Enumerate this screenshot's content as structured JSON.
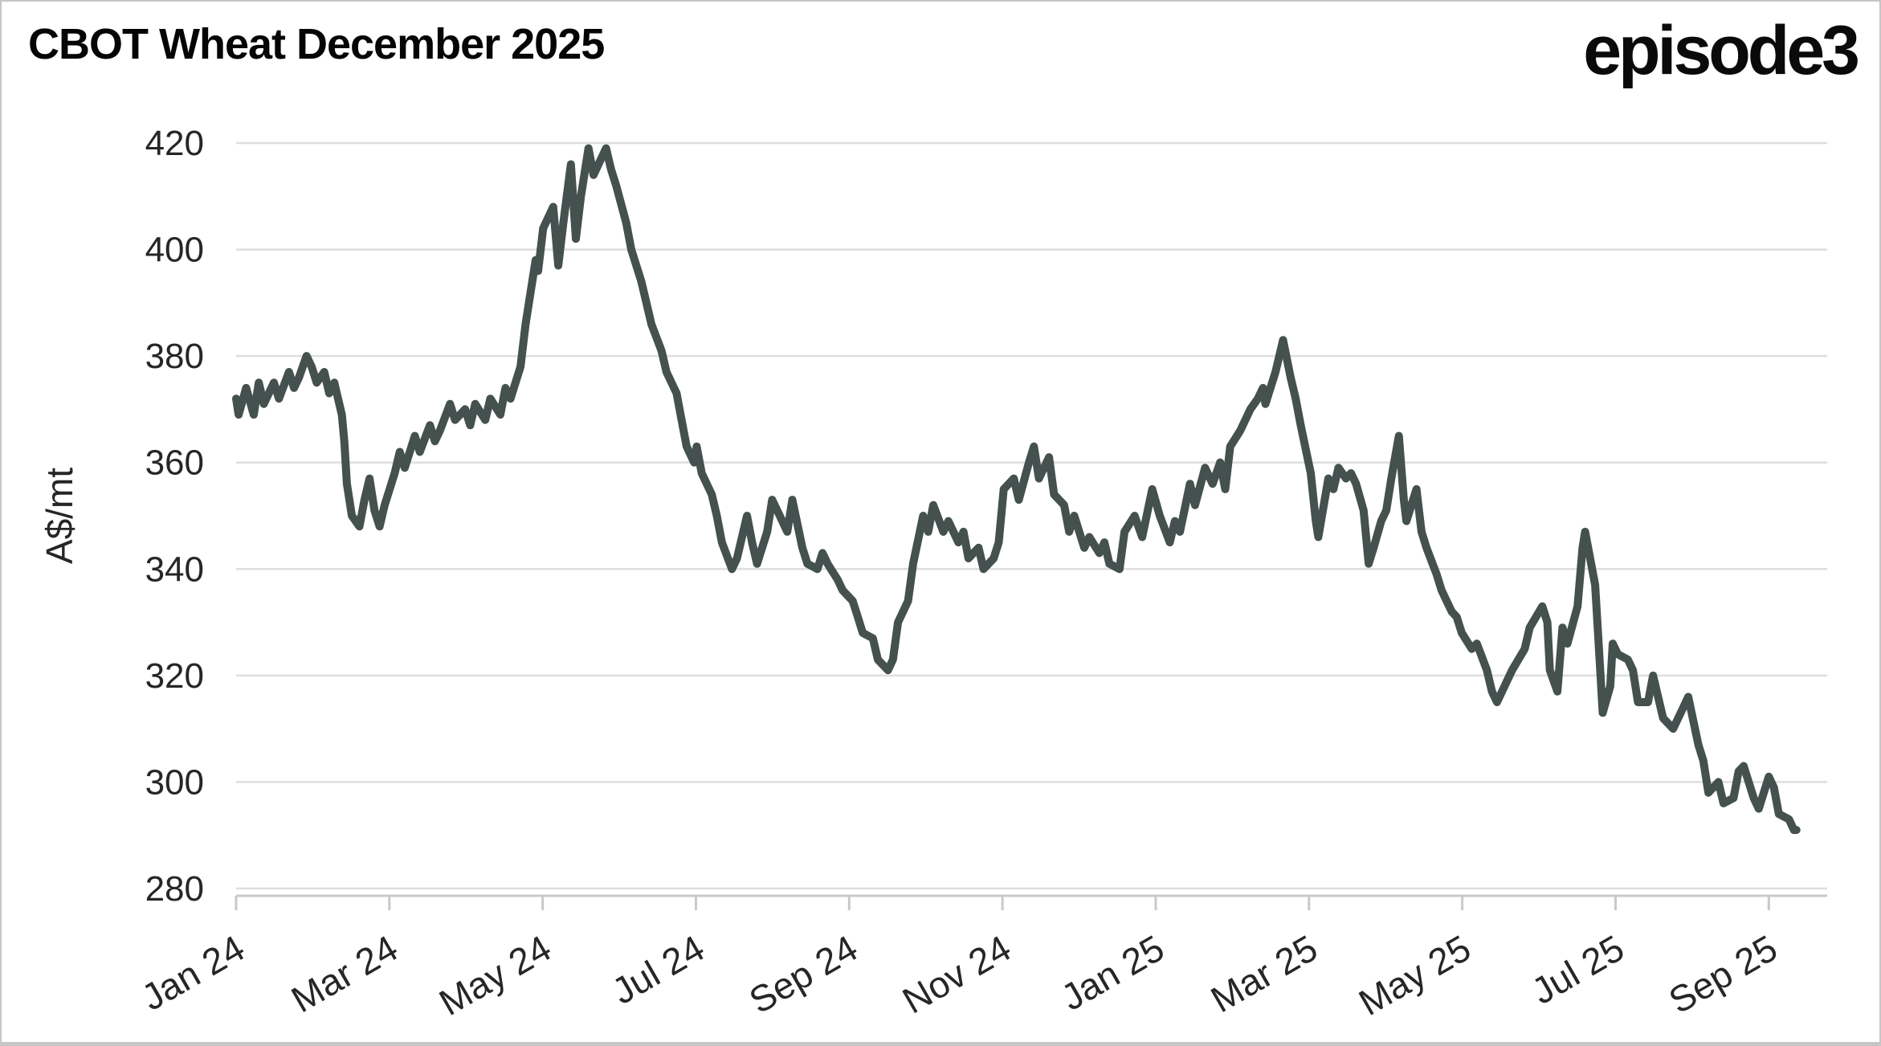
{
  "header": {
    "title": "CBOT Wheat December 2025",
    "logo_text": "episode3"
  },
  "chart_data": {
    "type": "line",
    "title": "CBOT Wheat December 2025",
    "xlabel": "",
    "ylabel": "A$/mt",
    "ylim": [
      280,
      420
    ],
    "grid": true,
    "legend_position": "none",
    "y_ticks": [
      420,
      400,
      380,
      360,
      340,
      320,
      300,
      280
    ],
    "x_tick_labels": [
      "Jan 24",
      "Mar 24",
      "May 24",
      "Jul 24",
      "Sep 24",
      "Nov 24",
      "Jan 25",
      "Mar 25",
      "May 25",
      "Jul 25",
      "Sep 25"
    ],
    "colors": {
      "line": "#44514e",
      "grid": "#dedede",
      "axis": "#c9c9c9",
      "tick_text": "#262626",
      "title_text": "#050505",
      "background": "#ffffff"
    },
    "series": [
      {
        "name": "CBOT Wheat December 2025",
        "unit": "A$/mt",
        "points": [
          [
            "2024-01-01",
            372
          ],
          [
            "2024-01-02",
            369
          ],
          [
            "2024-01-05",
            374
          ],
          [
            "2024-01-08",
            369
          ],
          [
            "2024-01-10",
            375
          ],
          [
            "2024-01-12",
            371
          ],
          [
            "2024-01-16",
            375
          ],
          [
            "2024-01-18",
            372
          ],
          [
            "2024-01-22",
            377
          ],
          [
            "2024-01-24",
            374
          ],
          [
            "2024-01-26",
            376
          ],
          [
            "2024-01-29",
            380
          ],
          [
            "2024-01-31",
            378
          ],
          [
            "2024-02-02",
            375
          ],
          [
            "2024-02-05",
            377
          ],
          [
            "2024-02-07",
            373
          ],
          [
            "2024-02-09",
            375
          ],
          [
            "2024-02-12",
            369
          ],
          [
            "2024-02-13",
            364
          ],
          [
            "2024-02-14",
            356
          ],
          [
            "2024-02-16",
            350
          ],
          [
            "2024-02-19",
            348
          ],
          [
            "2024-02-21",
            353
          ],
          [
            "2024-02-23",
            357
          ],
          [
            "2024-02-25",
            351
          ],
          [
            "2024-02-27",
            348
          ],
          [
            "2024-02-29",
            352
          ],
          [
            "2024-03-04",
            358
          ],
          [
            "2024-03-06",
            362
          ],
          [
            "2024-03-08",
            359
          ],
          [
            "2024-03-12",
            365
          ],
          [
            "2024-03-14",
            362
          ],
          [
            "2024-03-18",
            367
          ],
          [
            "2024-03-20",
            364
          ],
          [
            "2024-03-22",
            366
          ],
          [
            "2024-03-26",
            371
          ],
          [
            "2024-03-28",
            368
          ],
          [
            "2024-04-01",
            370
          ],
          [
            "2024-04-03",
            367
          ],
          [
            "2024-04-05",
            371
          ],
          [
            "2024-04-09",
            368
          ],
          [
            "2024-04-11",
            372
          ],
          [
            "2024-04-15",
            369
          ],
          [
            "2024-04-17",
            374
          ],
          [
            "2024-04-19",
            372
          ],
          [
            "2024-04-23",
            378
          ],
          [
            "2024-04-25",
            386
          ],
          [
            "2024-04-29",
            398
          ],
          [
            "2024-04-30",
            396
          ],
          [
            "2024-05-02",
            404
          ],
          [
            "2024-05-06",
            408
          ],
          [
            "2024-05-08",
            397
          ],
          [
            "2024-05-10",
            405
          ],
          [
            "2024-05-13",
            416
          ],
          [
            "2024-05-15",
            402
          ],
          [
            "2024-05-17",
            410
          ],
          [
            "2024-05-20",
            419
          ],
          [
            "2024-05-22",
            414
          ],
          [
            "2024-05-24",
            416
          ],
          [
            "2024-05-27",
            419
          ],
          [
            "2024-05-29",
            415
          ],
          [
            "2024-05-31",
            412
          ],
          [
            "2024-06-04",
            405
          ],
          [
            "2024-06-06",
            400
          ],
          [
            "2024-06-10",
            394
          ],
          [
            "2024-06-12",
            390
          ],
          [
            "2024-06-14",
            386
          ],
          [
            "2024-06-18",
            381
          ],
          [
            "2024-06-20",
            377
          ],
          [
            "2024-06-24",
            373
          ],
          [
            "2024-06-26",
            368
          ],
          [
            "2024-06-28",
            363
          ],
          [
            "2024-07-01",
            360
          ],
          [
            "2024-07-02",
            363
          ],
          [
            "2024-07-04",
            358
          ],
          [
            "2024-07-08",
            354
          ],
          [
            "2024-07-10",
            350
          ],
          [
            "2024-07-12",
            345
          ],
          [
            "2024-07-16",
            340
          ],
          [
            "2024-07-18",
            342
          ],
          [
            "2024-07-22",
            350
          ],
          [
            "2024-07-24",
            345
          ],
          [
            "2024-07-26",
            341
          ],
          [
            "2024-07-30",
            347
          ],
          [
            "2024-08-01",
            353
          ],
          [
            "2024-08-05",
            349
          ],
          [
            "2024-08-07",
            347
          ],
          [
            "2024-08-09",
            353
          ],
          [
            "2024-08-13",
            344
          ],
          [
            "2024-08-15",
            341
          ],
          [
            "2024-08-19",
            340
          ],
          [
            "2024-08-21",
            343
          ],
          [
            "2024-08-23",
            341
          ],
          [
            "2024-08-27",
            338
          ],
          [
            "2024-08-29",
            336
          ],
          [
            "2024-09-02",
            334
          ],
          [
            "2024-09-04",
            331
          ],
          [
            "2024-09-06",
            328
          ],
          [
            "2024-09-10",
            327
          ],
          [
            "2024-09-12",
            323
          ],
          [
            "2024-09-16",
            321
          ],
          [
            "2024-09-18",
            323
          ],
          [
            "2024-09-20",
            330
          ],
          [
            "2024-09-24",
            334
          ],
          [
            "2024-09-26",
            341
          ],
          [
            "2024-09-30",
            350
          ],
          [
            "2024-10-02",
            347
          ],
          [
            "2024-10-04",
            352
          ],
          [
            "2024-10-08",
            347
          ],
          [
            "2024-10-10",
            349
          ],
          [
            "2024-10-14",
            345
          ],
          [
            "2024-10-16",
            347
          ],
          [
            "2024-10-18",
            342
          ],
          [
            "2024-10-22",
            344
          ],
          [
            "2024-10-24",
            340
          ],
          [
            "2024-10-28",
            342
          ],
          [
            "2024-10-30",
            345
          ],
          [
            "2024-11-01",
            355
          ],
          [
            "2024-11-05",
            357
          ],
          [
            "2024-11-07",
            353
          ],
          [
            "2024-11-11",
            360
          ],
          [
            "2024-11-13",
            363
          ],
          [
            "2024-11-15",
            357
          ],
          [
            "2024-11-19",
            361
          ],
          [
            "2024-11-21",
            354
          ],
          [
            "2024-11-25",
            352
          ],
          [
            "2024-11-27",
            347
          ],
          [
            "2024-11-29",
            350
          ],
          [
            "2024-12-03",
            344
          ],
          [
            "2024-12-05",
            346
          ],
          [
            "2024-12-09",
            343
          ],
          [
            "2024-12-11",
            345
          ],
          [
            "2024-12-13",
            341
          ],
          [
            "2024-12-17",
            340
          ],
          [
            "2024-12-19",
            347
          ],
          [
            "2024-12-23",
            350
          ],
          [
            "2024-12-26",
            346
          ],
          [
            "2024-12-30",
            355
          ],
          [
            "2025-01-02",
            350
          ],
          [
            "2025-01-06",
            345
          ],
          [
            "2025-01-08",
            349
          ],
          [
            "2025-01-10",
            347
          ],
          [
            "2025-01-14",
            356
          ],
          [
            "2025-01-16",
            352
          ],
          [
            "2025-01-20",
            359
          ],
          [
            "2025-01-23",
            356
          ],
          [
            "2025-01-26",
            360
          ],
          [
            "2025-01-28",
            355
          ],
          [
            "2025-01-30",
            363
          ],
          [
            "2025-02-03",
            366
          ],
          [
            "2025-02-05",
            368
          ],
          [
            "2025-02-07",
            370
          ],
          [
            "2025-02-10",
            372
          ],
          [
            "2025-02-12",
            374
          ],
          [
            "2025-02-13",
            371
          ],
          [
            "2025-02-17",
            377
          ],
          [
            "2025-02-19",
            381
          ],
          [
            "2025-02-20",
            383
          ],
          [
            "2025-02-23",
            376
          ],
          [
            "2025-02-25",
            372
          ],
          [
            "2025-02-27",
            367
          ],
          [
            "2025-03-03",
            358
          ],
          [
            "2025-03-05",
            349
          ],
          [
            "2025-03-06",
            346
          ],
          [
            "2025-03-10",
            357
          ],
          [
            "2025-03-12",
            355
          ],
          [
            "2025-03-14",
            359
          ],
          [
            "2025-03-17",
            357
          ],
          [
            "2025-03-19",
            358
          ],
          [
            "2025-03-21",
            356
          ],
          [
            "2025-03-24",
            351
          ],
          [
            "2025-03-26",
            341
          ],
          [
            "2025-03-28",
            344
          ],
          [
            "2025-03-31",
            349
          ],
          [
            "2025-04-02",
            351
          ],
          [
            "2025-04-04",
            357
          ],
          [
            "2025-04-07",
            365
          ],
          [
            "2025-04-09",
            353
          ],
          [
            "2025-04-10",
            349
          ],
          [
            "2025-04-14",
            355
          ],
          [
            "2025-04-16",
            347
          ],
          [
            "2025-04-18",
            344
          ],
          [
            "2025-04-22",
            339
          ],
          [
            "2025-04-24",
            336
          ],
          [
            "2025-04-28",
            332
          ],
          [
            "2025-04-30",
            331
          ],
          [
            "2025-05-02",
            328
          ],
          [
            "2025-05-06",
            325
          ],
          [
            "2025-05-08",
            326
          ],
          [
            "2025-05-12",
            321
          ],
          [
            "2025-05-14",
            317
          ],
          [
            "2025-05-16",
            315
          ],
          [
            "2025-05-20",
            319
          ],
          [
            "2025-05-22",
            321
          ],
          [
            "2025-05-27",
            325
          ],
          [
            "2025-05-29",
            329
          ],
          [
            "2025-06-03",
            333
          ],
          [
            "2025-06-05",
            330
          ],
          [
            "2025-06-06",
            321
          ],
          [
            "2025-06-09",
            317
          ],
          [
            "2025-06-11",
            329
          ],
          [
            "2025-06-13",
            326
          ],
          [
            "2025-06-17",
            333
          ],
          [
            "2025-06-19",
            344
          ],
          [
            "2025-06-20",
            347
          ],
          [
            "2025-06-24",
            337
          ],
          [
            "2025-06-26",
            321
          ],
          [
            "2025-06-27",
            313
          ],
          [
            "2025-06-30",
            318
          ],
          [
            "2025-07-01",
            326
          ],
          [
            "2025-07-03",
            324
          ],
          [
            "2025-07-07",
            323
          ],
          [
            "2025-07-09",
            321
          ],
          [
            "2025-07-11",
            315
          ],
          [
            "2025-07-15",
            315
          ],
          [
            "2025-07-17",
            320
          ],
          [
            "2025-07-21",
            312
          ],
          [
            "2025-07-23",
            311
          ],
          [
            "2025-07-25",
            310
          ],
          [
            "2025-07-29",
            314
          ],
          [
            "2025-07-31",
            316
          ],
          [
            "2025-08-04",
            307
          ],
          [
            "2025-08-06",
            304
          ],
          [
            "2025-08-08",
            298
          ],
          [
            "2025-08-12",
            300
          ],
          [
            "2025-08-14",
            296
          ],
          [
            "2025-08-18",
            297
          ],
          [
            "2025-08-20",
            302
          ],
          [
            "2025-08-22",
            303
          ],
          [
            "2025-08-26",
            297
          ],
          [
            "2025-08-28",
            295
          ],
          [
            "2025-09-01",
            301
          ],
          [
            "2025-09-03",
            299
          ],
          [
            "2025-09-05",
            294
          ],
          [
            "2025-09-09",
            293
          ],
          [
            "2025-09-11",
            291
          ],
          [
            "2025-09-12",
            291
          ]
        ]
      }
    ]
  }
}
